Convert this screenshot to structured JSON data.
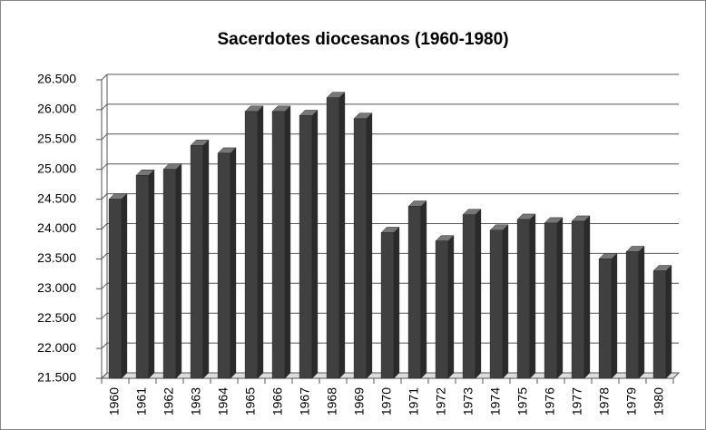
{
  "chart_data": {
    "type": "bar3d",
    "title": "Sacerdotes diocesanos (1960-1980)",
    "categories": [
      "1960",
      "1961",
      "1962",
      "1963",
      "1964",
      "1965",
      "1966",
      "1967",
      "1968",
      "1969",
      "1970",
      "1971",
      "1972",
      "1973",
      "1974",
      "1975",
      "1976",
      "1977",
      "1978",
      "1979",
      "1980"
    ],
    "values": [
      24500,
      24900,
      25000,
      25400,
      25270,
      25970,
      25970,
      25900,
      26200,
      25850,
      23940,
      24380,
      23800,
      24240,
      23980,
      24160,
      24100,
      24130,
      23500,
      23620,
      23300
    ],
    "color": "#404040",
    "ylim": [
      21500,
      26500
    ],
    "yticks": [
      {
        "value": 21500,
        "label": "21.500"
      },
      {
        "value": 22000,
        "label": "22.000"
      },
      {
        "value": 22500,
        "label": "22.500"
      },
      {
        "value": 23000,
        "label": "23.000"
      },
      {
        "value": 23500,
        "label": "23.500"
      },
      {
        "value": 24000,
        "label": "24.000"
      },
      {
        "value": 24500,
        "label": "24.500"
      },
      {
        "value": 25000,
        "label": "25.000"
      },
      {
        "value": 25500,
        "label": "25.500"
      },
      {
        "value": 26000,
        "label": "26.000"
      },
      {
        "value": 26500,
        "label": "26.500"
      }
    ],
    "grid": true
  }
}
